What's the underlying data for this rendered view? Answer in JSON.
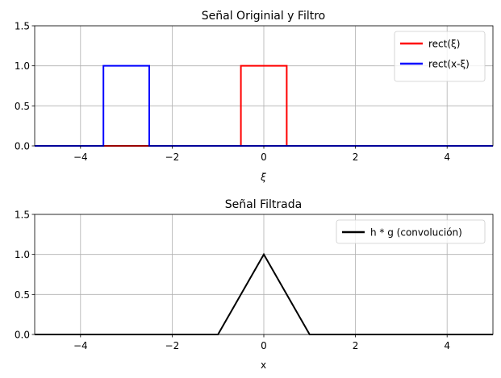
{
  "chart_data": [
    {
      "type": "line",
      "title": "Señal Originial y Filtro",
      "xlabel": "ξ",
      "ylabel": "",
      "xlim": [
        -5,
        5
      ],
      "ylim": [
        0,
        1.5
      ],
      "xticks": [
        -4,
        -2,
        0,
        2,
        4
      ],
      "xtick_labels": [
        "−4",
        "−2",
        "0",
        "2",
        "4"
      ],
      "yticks": [
        0.0,
        0.5,
        1.0,
        1.5
      ],
      "ytick_labels": [
        "0.0",
        "0.5",
        "1.0",
        "1.5"
      ],
      "grid": true,
      "legend_position": "top-right",
      "series": [
        {
          "name": "rect(ξ)",
          "color": "#ff0000",
          "x": [
            -5,
            -0.5,
            -0.5,
            0.5,
            0.5,
            5
          ],
          "y": [
            0,
            0,
            1,
            1,
            0,
            0
          ]
        },
        {
          "name": "rect(x-ξ)",
          "color": "#0000ff",
          "x": [
            -5,
            -3.5,
            -3.5,
            -2.5,
            -2.5,
            5
          ],
          "y": [
            0,
            0,
            1,
            1,
            0,
            0
          ]
        }
      ]
    },
    {
      "type": "line",
      "title": "Señal Filtrada",
      "xlabel": "x",
      "ylabel": "",
      "xlim": [
        -5,
        5
      ],
      "ylim": [
        0,
        1.5
      ],
      "xticks": [
        -4,
        -2,
        0,
        2,
        4
      ],
      "xtick_labels": [
        "−4",
        "−2",
        "0",
        "2",
        "4"
      ],
      "yticks": [
        0.0,
        0.5,
        1.0,
        1.5
      ],
      "ytick_labels": [
        "0.0",
        "0.5",
        "1.0",
        "1.5"
      ],
      "grid": true,
      "legend_position": "top-right",
      "series": [
        {
          "name": "h * g (convolución)",
          "color": "#000000",
          "x": [
            -5,
            -1,
            0,
            1,
            5
          ],
          "y": [
            0,
            0,
            1,
            0,
            0
          ]
        }
      ]
    }
  ]
}
